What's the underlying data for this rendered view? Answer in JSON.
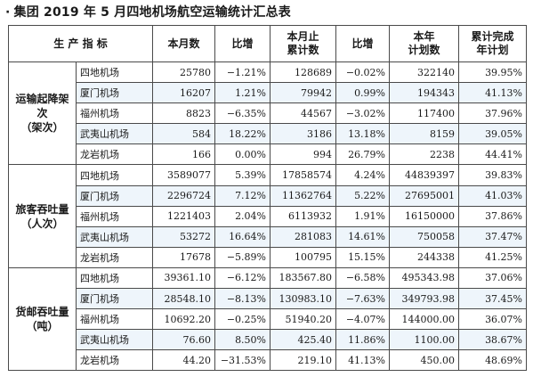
{
  "title": "集团 2019 年 5 月四地机场航空运输统计汇总表",
  "title_bullet": "·",
  "headers": {
    "indicator": "生 产 指 标",
    "month": "本月数",
    "month_change": "比增",
    "cumulative_line1": "本月止",
    "cumulative_line2": "累计数",
    "cumulative_change": "比增",
    "plan_line1": "本年",
    "plan_line2": "计划数",
    "completion_line1": "累计完成",
    "completion_line2": "年计划"
  },
  "groups": [
    {
      "label_line1": "运输起降架次",
      "label_line2": "（架次）",
      "rows": [
        {
          "airport": "四地机场",
          "month": "25780",
          "month_change": "−1.21%",
          "cumulative": "128689",
          "cumulative_change": "−0.02%",
          "plan": "322140",
          "completion": "39.95%"
        },
        {
          "airport": "厦门机场",
          "month": "16207",
          "month_change": "1.21%",
          "cumulative": "79942",
          "cumulative_change": "0.99%",
          "plan": "194343",
          "completion": "41.13%"
        },
        {
          "airport": "福州机场",
          "month": "8823",
          "month_change": "−6.35%",
          "cumulative": "44567",
          "cumulative_change": "−3.02%",
          "plan": "117400",
          "completion": "37.96%"
        },
        {
          "airport": "武夷山机场",
          "month": "584",
          "month_change": "18.22%",
          "cumulative": "3186",
          "cumulative_change": "13.18%",
          "plan": "8159",
          "completion": "39.05%"
        },
        {
          "airport": "龙岩机场",
          "month": "166",
          "month_change": "0.00%",
          "cumulative": "994",
          "cumulative_change": "26.79%",
          "plan": "2238",
          "completion": "44.41%"
        }
      ]
    },
    {
      "label_line1": "旅客吞吐量",
      "label_line2": "（人次）",
      "rows": [
        {
          "airport": "四地机场",
          "month": "3589077",
          "month_change": "5.39%",
          "cumulative": "17858574",
          "cumulative_change": "4.24%",
          "plan": "44839397",
          "completion": "39.83%"
        },
        {
          "airport": "厦门机场",
          "month": "2296724",
          "month_change": "7.12%",
          "cumulative": "11362764",
          "cumulative_change": "5.22%",
          "plan": "27695001",
          "completion": "41.03%"
        },
        {
          "airport": "福州机场",
          "month": "1221403",
          "month_change": "2.04%",
          "cumulative": "6113932",
          "cumulative_change": "1.91%",
          "plan": "16150000",
          "completion": "37.86%"
        },
        {
          "airport": "武夷山机场",
          "month": "53272",
          "month_change": "16.64%",
          "cumulative": "281083",
          "cumulative_change": "14.61%",
          "plan": "750058",
          "completion": "37.47%"
        },
        {
          "airport": "龙岩机场",
          "month": "17678",
          "month_change": "−5.89%",
          "cumulative": "100795",
          "cumulative_change": "15.15%",
          "plan": "244338",
          "completion": "41.25%"
        }
      ]
    },
    {
      "label_line1": "货邮吞吐量",
      "label_line2": "（吨）",
      "rows": [
        {
          "airport": "四地机场",
          "month": "39361.10",
          "month_change": "−6.12%",
          "cumulative": "183567.80",
          "cumulative_change": "−6.58%",
          "plan": "495343.98",
          "completion": "37.06%"
        },
        {
          "airport": "厦门机场",
          "month": "28548.10",
          "month_change": "−8.13%",
          "cumulative": "130983.10",
          "cumulative_change": "−7.63%",
          "plan": "349793.98",
          "completion": "37.45%"
        },
        {
          "airport": "福州机场",
          "month": "10692.20",
          "month_change": "−0.25%",
          "cumulative": "51940.20",
          "cumulative_change": "−4.07%",
          "plan": "144000.00",
          "completion": "36.07%"
        },
        {
          "airport": "武夷山机场",
          "month": "76.60",
          "month_change": "8.50%",
          "cumulative": "425.40",
          "cumulative_change": "11.86%",
          "plan": "1100.00",
          "completion": "38.67%"
        },
        {
          "airport": "龙岩机场",
          "month": "44.20",
          "month_change": "−31.53%",
          "cumulative": "219.10",
          "cumulative_change": "41.13%",
          "plan": "450.00",
          "completion": "48.69%"
        }
      ]
    }
  ],
  "colors": {
    "band": "#eef5fb",
    "border": "#4a4a4a",
    "text": "#1a1a1a"
  }
}
